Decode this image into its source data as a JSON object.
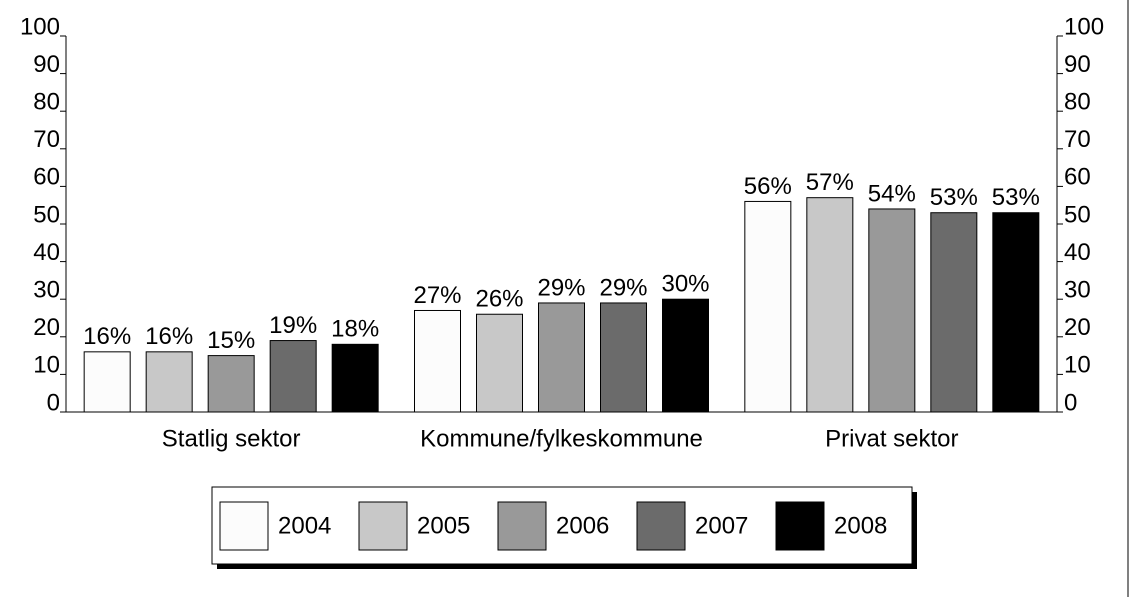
{
  "chart_data": {
    "type": "bar",
    "categories": [
      "Statlig sektor",
      "Kommune/fylkeskommune",
      "Privat sektor"
    ],
    "series": [
      {
        "name": "2004",
        "color": "#fcfcfc",
        "values": [
          16,
          27,
          56
        ],
        "value_labels": [
          "16%",
          "27%",
          "56%"
        ]
      },
      {
        "name": "2005",
        "color": "#c8c8c8",
        "values": [
          16,
          26,
          57
        ],
        "value_labels": [
          "16%",
          "26%",
          "57%"
        ]
      },
      {
        "name": "2006",
        "color": "#999999",
        "values": [
          15,
          29,
          54
        ],
        "value_labels": [
          "15%",
          "29%",
          "54%"
        ]
      },
      {
        "name": "2007",
        "color": "#6b6b6b",
        "values": [
          19,
          29,
          53
        ],
        "value_labels": [
          "19%",
          "29%",
          "53%"
        ]
      },
      {
        "name": "2008",
        "color": "#000000",
        "values": [
          18,
          30,
          53
        ],
        "value_labels": [
          "18%",
          "30%",
          "53%"
        ]
      }
    ],
    "ylim": [
      0,
      100
    ],
    "yticks": [
      0,
      10,
      20,
      30,
      40,
      50,
      60,
      70,
      80,
      90,
      100
    ],
    "y2lim": [
      0,
      100
    ],
    "y2ticks": [
      0,
      10,
      20,
      30,
      40,
      50,
      60,
      70,
      80,
      90,
      100
    ],
    "legend": "bottom"
  }
}
